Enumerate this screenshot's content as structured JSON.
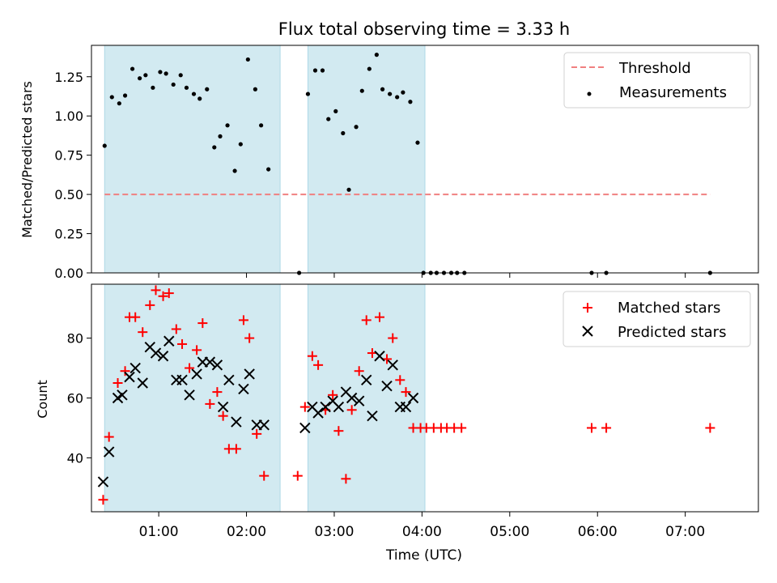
{
  "title": "Flux total observing time = 3.33 h",
  "xlabel": "Time (UTC)",
  "x_tick_labels": [
    "01:00",
    "02:00",
    "03:00",
    "04:00",
    "05:00",
    "06:00",
    "07:00"
  ],
  "colors": {
    "shade": "#add8e6",
    "threshold": "#f08080",
    "measurement": "#000000",
    "matched": "#ff0000",
    "predicted": "#000000"
  },
  "chart_data": [
    {
      "type": "scatter",
      "ylabel": "Matched/Predicted stars",
      "xlim": [
        "00:14",
        "07:50"
      ],
      "ylim": [
        0,
        1.45
      ],
      "y_tick_labels": [
        "0.00",
        "0.25",
        "0.50",
        "0.75",
        "1.00",
        "1.25"
      ],
      "legend": {
        "position": "upper right",
        "entries": [
          "Threshold",
          "Measurements"
        ]
      },
      "shaded_intervals": [
        [
          "00:23",
          "02:23"
        ],
        [
          "02:42",
          "04:02"
        ]
      ],
      "threshold": {
        "name": "Threshold",
        "y": 0.5,
        "x_range": [
          "00:23",
          "07:17"
        ],
        "style": "dashed"
      },
      "series": [
        {
          "name": "Measurements",
          "marker": "dot",
          "points": [
            [
              "00:23",
              0.81
            ],
            [
              "00:28",
              1.12
            ],
            [
              "00:33",
              1.08
            ],
            [
              "00:37",
              1.13
            ],
            [
              "00:42",
              1.3
            ],
            [
              "00:47",
              1.24
            ],
            [
              "00:51",
              1.26
            ],
            [
              "00:56",
              1.18
            ],
            [
              "01:01",
              1.28
            ],
            [
              "01:05",
              1.27
            ],
            [
              "01:10",
              1.2
            ],
            [
              "01:15",
              1.26
            ],
            [
              "01:19",
              1.18
            ],
            [
              "01:24",
              1.14
            ],
            [
              "01:28",
              1.11
            ],
            [
              "01:33",
              1.17
            ],
            [
              "01:38",
              0.8
            ],
            [
              "01:42",
              0.87
            ],
            [
              "01:47",
              0.94
            ],
            [
              "01:52",
              0.65
            ],
            [
              "01:56",
              0.82
            ],
            [
              "02:01",
              1.36
            ],
            [
              "02:06",
              1.17
            ],
            [
              "02:10",
              0.94
            ],
            [
              "02:15",
              0.66
            ],
            [
              "02:36",
              0.0
            ],
            [
              "02:42",
              1.14
            ],
            [
              "02:47",
              1.29
            ],
            [
              "02:52",
              1.29
            ],
            [
              "02:56",
              0.98
            ],
            [
              "03:01",
              1.03
            ],
            [
              "03:06",
              0.89
            ],
            [
              "03:10",
              0.53
            ],
            [
              "03:15",
              0.93
            ],
            [
              "03:19",
              1.16
            ],
            [
              "03:24",
              1.3
            ],
            [
              "03:29",
              1.39
            ],
            [
              "03:33",
              1.17
            ],
            [
              "03:38",
              1.14
            ],
            [
              "03:43",
              1.12
            ],
            [
              "03:47",
              1.15
            ],
            [
              "03:52",
              1.09
            ],
            [
              "03:57",
              0.83
            ],
            [
              "04:01",
              0.0
            ],
            [
              "04:06",
              0.0
            ],
            [
              "04:10",
              0.0
            ],
            [
              "04:15",
              0.0
            ],
            [
              "04:20",
              0.0
            ],
            [
              "04:24",
              0.0
            ],
            [
              "04:29",
              0.0
            ],
            [
              "05:56",
              0.0
            ],
            [
              "06:06",
              0.0
            ],
            [
              "07:17",
              0.0
            ]
          ]
        }
      ]
    },
    {
      "type": "scatter",
      "ylabel": "Count",
      "xlabel": "Time (UTC)",
      "xlim": [
        "00:14",
        "07:50"
      ],
      "ylim": [
        22,
        98
      ],
      "y_tick_labels": [
        "40",
        "60",
        "80"
      ],
      "legend": {
        "position": "upper right",
        "entries": [
          "Matched stars",
          "Predicted stars"
        ]
      },
      "shaded_intervals": [
        [
          "00:23",
          "02:23"
        ],
        [
          "02:42",
          "04:02"
        ]
      ],
      "series": [
        {
          "name": "Matched stars",
          "marker": "plus",
          "points": [
            [
              "00:22",
              26
            ],
            [
              "00:26",
              47
            ],
            [
              "00:32",
              65
            ],
            [
              "00:37",
              69
            ],
            [
              "00:40",
              87
            ],
            [
              "00:44",
              87
            ],
            [
              "00:49",
              82
            ],
            [
              "00:54",
              91
            ],
            [
              "00:58",
              96
            ],
            [
              "01:03",
              94
            ],
            [
              "01:07",
              95
            ],
            [
              "01:12",
              83
            ],
            [
              "01:16",
              78
            ],
            [
              "01:21",
              70
            ],
            [
              "01:26",
              76
            ],
            [
              "01:30",
              85
            ],
            [
              "01:35",
              58
            ],
            [
              "01:40",
              62
            ],
            [
              "01:44",
              54
            ],
            [
              "01:48",
              43
            ],
            [
              "01:53",
              43
            ],
            [
              "01:58",
              86
            ],
            [
              "02:02",
              80
            ],
            [
              "02:07",
              48
            ],
            [
              "02:12",
              34
            ],
            [
              "02:35",
              34
            ],
            [
              "02:40",
              57
            ],
            [
              "02:45",
              74
            ],
            [
              "02:49",
              71
            ],
            [
              "02:54",
              56
            ],
            [
              "02:59",
              61
            ],
            [
              "03:03",
              49
            ],
            [
              "03:08",
              33
            ],
            [
              "03:12",
              56
            ],
            [
              "03:17",
              69
            ],
            [
              "03:22",
              86
            ],
            [
              "03:26",
              75
            ],
            [
              "03:31",
              87
            ],
            [
              "03:36",
              73
            ],
            [
              "03:40",
              80
            ],
            [
              "03:45",
              66
            ],
            [
              "03:49",
              62
            ],
            [
              "03:54",
              50
            ],
            [
              "03:59",
              50
            ],
            [
              "04:03",
              50
            ],
            [
              "04:08",
              50
            ],
            [
              "04:13",
              50
            ],
            [
              "04:17",
              50
            ],
            [
              "04:22",
              50
            ],
            [
              "04:27",
              50
            ],
            [
              "05:56",
              50
            ],
            [
              "06:06",
              50
            ],
            [
              "07:17",
              50
            ]
          ]
        },
        {
          "name": "Predicted stars",
          "marker": "cross",
          "points": [
            [
              "00:22",
              32
            ],
            [
              "00:26",
              42
            ],
            [
              "00:32",
              60
            ],
            [
              "00:35",
              61
            ],
            [
              "00:40",
              67
            ],
            [
              "00:44",
              70
            ],
            [
              "00:49",
              65
            ],
            [
              "00:54",
              77
            ],
            [
              "00:58",
              75
            ],
            [
              "01:03",
              74
            ],
            [
              "01:07",
              79
            ],
            [
              "01:12",
              66
            ],
            [
              "01:16",
              66
            ],
            [
              "01:21",
              61
            ],
            [
              "01:26",
              68
            ],
            [
              "01:30",
              72
            ],
            [
              "01:35",
              72
            ],
            [
              "01:40",
              71
            ],
            [
              "01:44",
              57
            ],
            [
              "01:48",
              66
            ],
            [
              "01:53",
              52
            ],
            [
              "01:58",
              63
            ],
            [
              "02:02",
              68
            ],
            [
              "02:07",
              51
            ],
            [
              "02:12",
              51
            ],
            [
              "02:40",
              50
            ],
            [
              "02:45",
              57
            ],
            [
              "02:49",
              55
            ],
            [
              "02:54",
              57
            ],
            [
              "02:59",
              59
            ],
            [
              "03:03",
              57
            ],
            [
              "03:08",
              62
            ],
            [
              "03:12",
              60
            ],
            [
              "03:17",
              59
            ],
            [
              "03:22",
              66
            ],
            [
              "03:26",
              54
            ],
            [
              "03:31",
              74
            ],
            [
              "03:36",
              64
            ],
            [
              "03:40",
              71
            ],
            [
              "03:45",
              57
            ],
            [
              "03:49",
              57
            ],
            [
              "03:54",
              60
            ]
          ]
        }
      ]
    }
  ]
}
